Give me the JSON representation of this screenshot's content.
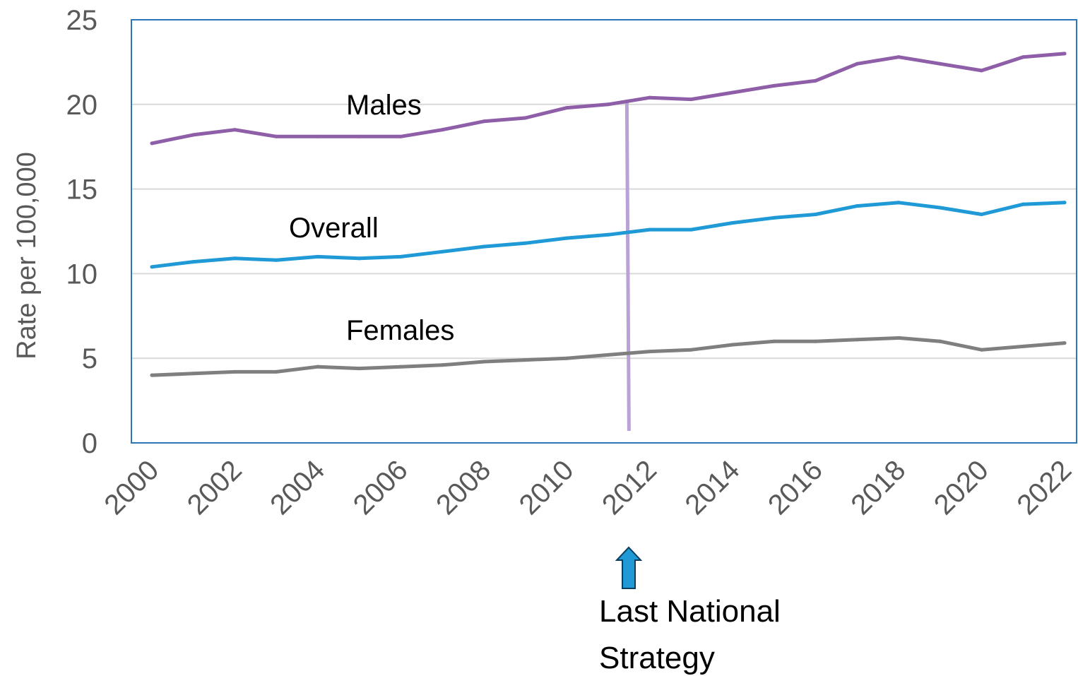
{
  "chart_data": {
    "type": "line",
    "title": "",
    "xlabel": "",
    "ylabel": "Rate per 100,000",
    "ylim": [
      0,
      25
    ],
    "yticks": [
      0,
      5,
      10,
      15,
      20,
      25
    ],
    "xlim": [
      2000,
      2022
    ],
    "xticks": [
      2000,
      2002,
      2004,
      2006,
      2008,
      2010,
      2012,
      2014,
      2016,
      2018,
      2020,
      2022
    ],
    "grid": true,
    "x": [
      2000,
      2001,
      2002,
      2003,
      2004,
      2005,
      2006,
      2007,
      2008,
      2009,
      2010,
      2011,
      2012,
      2013,
      2014,
      2015,
      2016,
      2017,
      2018,
      2019,
      2020,
      2021,
      2022
    ],
    "series": [
      {
        "name": "Males",
        "color": "#8e5ea8",
        "values": [
          17.7,
          18.2,
          18.5,
          18.1,
          18.1,
          18.1,
          18.1,
          18.5,
          19.0,
          19.2,
          19.8,
          20.0,
          20.4,
          20.3,
          20.7,
          21.1,
          21.4,
          22.4,
          22.8,
          22.4,
          22.0,
          22.8,
          23.0
        ]
      },
      {
        "name": "Overall",
        "color": "#1f9ad6",
        "values": [
          10.4,
          10.7,
          10.9,
          10.8,
          11.0,
          10.9,
          11.0,
          11.3,
          11.6,
          11.8,
          12.1,
          12.3,
          12.6,
          12.6,
          13.0,
          13.3,
          13.5,
          14.0,
          14.2,
          13.9,
          13.5,
          14.1,
          14.2
        ]
      },
      {
        "name": "Females",
        "color": "#7f7f7f",
        "values": [
          4.0,
          4.1,
          4.2,
          4.2,
          4.5,
          4.4,
          4.5,
          4.6,
          4.8,
          4.9,
          5.0,
          5.2,
          5.4,
          5.5,
          5.8,
          6.0,
          6.0,
          6.1,
          6.2,
          6.0,
          5.5,
          5.7,
          5.9
        ]
      }
    ],
    "annotations": [
      {
        "text_line1": "Last National",
        "text_line2": "Strategy",
        "x": 2011.5,
        "marker_color": "#b8a2d6",
        "arrow_color": "#1f9ad6"
      }
    ]
  }
}
